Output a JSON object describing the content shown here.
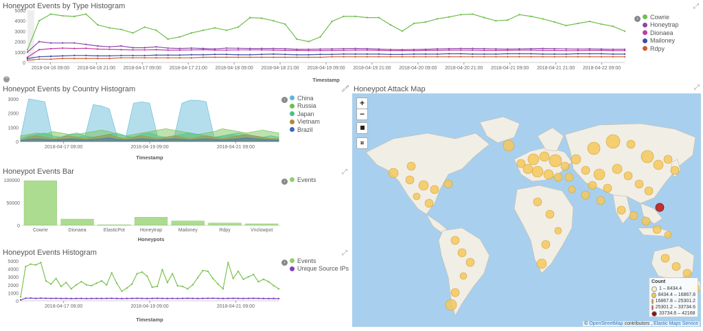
{
  "colors": {
    "cowrie": "#6dbf4b",
    "honeytrap": "#8e44ad",
    "dionaea": "#c03aa0",
    "mailoney": "#3a4ea8",
    "rdpy": "#d15a2e",
    "china": "#5ab6d6",
    "russia": "#6dbf4b",
    "japan": "#4bbf8a",
    "vietnam": "#b08a3a",
    "brazil": "#3a6ab8",
    "events": "#8fd06a",
    "unique": "#7b3fc4",
    "land": "#f1eee6",
    "bubble": "#f4c85a",
    "bubbleRed": "#c0302e"
  },
  "type_hist": {
    "title": "Honeypot Events by Type Histogram",
    "xlabel": "Timestamp",
    "ticks_y": [
      "5000",
      "4000",
      "3000",
      "2000",
      "1000",
      "0"
    ],
    "ticks_x": [
      "2018-04-16 09:00",
      "2018-04-16 21:00",
      "2018-04-17 09:00",
      "2018-04-17 21:00",
      "2018-04-18 09:00",
      "2018-04-18 21:00",
      "2018-04-19 09:00",
      "2018-04-19 21:00",
      "2018-04-20 09:00",
      "2018-04-20 21:00",
      "2018-04-21 09:00",
      "2018-04-21 21:00",
      "2018-04-22 09:00"
    ],
    "legend": [
      "Cowrie",
      "Honeytrap",
      "Dionaea",
      "Mailoney",
      "Rdpy"
    ]
  },
  "country_hist": {
    "title": "Honeypot Events by Country Histogram",
    "xlabel": "Timestamp",
    "ticks_y": [
      "3000",
      "2000",
      "1000",
      "0"
    ],
    "ticks_x": [
      "2018-04-17 09:00",
      "2018-04-19 09:00",
      "2018-04-21 09:00"
    ],
    "legend": [
      "China",
      "Russia",
      "Japan",
      "Vietnam",
      "Brazil"
    ]
  },
  "bar": {
    "title": "Honeypot Events Bar",
    "xlabel": "Honeypots",
    "ticks_y": [
      "100000",
      "50000",
      "0"
    ],
    "legend": [
      "Events"
    ]
  },
  "events_hist": {
    "title": "Honeypot Events Histogram",
    "xlabel": "Timestamp",
    "ticks_y": [
      "5000",
      "4000",
      "3000",
      "2000",
      "1000",
      "0"
    ],
    "ticks_x": [
      "2018-04-17 09:00",
      "2018-04-19 09:00",
      "2018-04-21 09:00"
    ],
    "legend": [
      "Events",
      "Unique Source IPs"
    ]
  },
  "map": {
    "title": "Honeypot Attack Map",
    "zoom_in": "+",
    "zoom_out": "−",
    "legend_title": "Count",
    "legend": [
      "1 – 8434.4",
      "8434.4 – 16867.8",
      "16867.8 – 25301.2",
      "25301.2 – 33734.6",
      "33734.6 – 42168"
    ],
    "legend_colors": [
      "#fbeec6",
      "#f4c85a",
      "#ef9a3c",
      "#e0452e",
      "#8a1016"
    ],
    "attr_symbol": "©",
    "attr_osm": "OpenStreetMap",
    "attr_mid": "contributors ,",
    "attr_ems": "Elastic Maps Service"
  },
  "chart_data": [
    {
      "type": "line",
      "title": "Honeypot Events by Type Histogram",
      "xlabel": "Timestamp",
      "x_range": [
        "2018-04-16 00:00",
        "2018-04-22 21:00"
      ],
      "ylim": [
        0,
        5000
      ],
      "series": [
        {
          "name": "Cowrie",
          "values": [
            300,
            3200,
            4300,
            4000,
            3900,
            4300,
            2600,
            2200,
            2000,
            1600,
            2300,
            1900,
            1000,
            1200,
            1600,
            1900,
            2200,
            1900,
            2300,
            3700,
            3600,
            3200,
            2700,
            1000,
            800,
            1200,
            3100,
            3900,
            3900,
            3700,
            3700,
            2600,
            1800,
            2800,
            3000,
            3500,
            3800,
            4200,
            4300,
            3700,
            3200,
            3300,
            4200,
            3900,
            3500,
            3000,
            2500,
            2800,
            3100,
            2700,
            2400,
            1800
          ],
          "note_omitted": false
        },
        {
          "name": "Honeytrap",
          "values": [
            200,
            800,
            700,
            700,
            700,
            600,
            500,
            450,
            500,
            400,
            400,
            450,
            380,
            360,
            380,
            360,
            340,
            380,
            370,
            360,
            360,
            360,
            350,
            320,
            320,
            330,
            340,
            350,
            360,
            350,
            330,
            310,
            300,
            310,
            320,
            340,
            350,
            360,
            360,
            350,
            340,
            330,
            340,
            350,
            360,
            350,
            340,
            330,
            340,
            330,
            320,
            320
          ]
        },
        {
          "name": "Dionaea",
          "values": [
            50,
            300,
            350,
            380,
            360,
            370,
            330,
            320,
            300,
            290,
            290,
            300,
            280,
            280,
            290,
            300,
            280,
            280,
            290,
            290,
            290,
            280,
            270,
            270,
            260,
            260,
            270,
            270,
            280,
            280,
            270,
            260,
            260,
            260,
            270,
            270,
            280,
            280,
            280,
            270,
            270,
            270,
            280,
            280,
            270,
            270,
            260,
            260,
            270,
            270,
            260,
            260
          ]
        },
        {
          "name": "Mailoney",
          "values": [
            30,
            60,
            70,
            80,
            90,
            90,
            80,
            80,
            90,
            90,
            90,
            100,
            100,
            100,
            110,
            110,
            120,
            120,
            110,
            110,
            120,
            130,
            120,
            110,
            110,
            120,
            120,
            130,
            130,
            130,
            130,
            120,
            120,
            130,
            130,
            130,
            140,
            140,
            130,
            130,
            130,
            140,
            140,
            140,
            130,
            130,
            130,
            140,
            140,
            140,
            130,
            130
          ]
        },
        {
          "name": "Rdpy",
          "values": [
            10,
            20,
            20,
            30,
            30,
            30,
            30,
            30,
            40,
            40,
            40,
            40,
            40,
            40,
            40,
            50,
            50,
            50,
            50,
            50,
            50,
            50,
            50,
            50,
            50,
            50,
            60,
            60,
            60,
            60,
            60,
            60,
            60,
            60,
            60,
            60,
            60,
            60,
            60,
            60,
            60,
            60,
            60,
            60,
            60,
            60,
            60,
            60,
            60,
            60,
            60,
            60
          ]
        }
      ]
    },
    {
      "type": "area",
      "title": "Honeypot Events by Country Histogram",
      "xlabel": "Timestamp",
      "ylim": [
        0,
        3000
      ],
      "series": [
        {
          "name": "China",
          "values": [
            300,
            3000,
            2900,
            2800,
            200,
            150,
            200,
            300,
            400,
            2600,
            2500,
            2300,
            300,
            200,
            2700,
            2800,
            2700,
            300,
            200,
            200,
            2700,
            2900,
            2900,
            2800,
            300,
            400,
            500,
            400,
            400,
            300,
            300,
            200,
            200
          ]
        },
        {
          "name": "Russia",
          "values": [
            400,
            500,
            600,
            500,
            700,
            600,
            500,
            500,
            600,
            700,
            800,
            700,
            500,
            400,
            500,
            600,
            700,
            800,
            900,
            800,
            700,
            600,
            500,
            600,
            700,
            900,
            800,
            700,
            600,
            700,
            800,
            700,
            600
          ]
        },
        {
          "name": "Japan",
          "values": [
            200,
            400,
            500,
            600,
            400,
            300,
            500,
            600,
            400,
            300,
            400,
            500,
            600,
            400,
            300,
            500,
            600,
            400,
            300,
            400,
            500,
            600,
            500,
            400,
            300,
            400,
            500,
            600,
            500,
            400,
            300,
            400,
            300
          ]
        },
        {
          "name": "Vietnam",
          "values": [
            100,
            300,
            400,
            300,
            200,
            300,
            400,
            300,
            200,
            300,
            400,
            500,
            300,
            200,
            300,
            400,
            300,
            200,
            300,
            400,
            300,
            200,
            300,
            400,
            300,
            200,
            300,
            400,
            500,
            400,
            300,
            200,
            200
          ]
        },
        {
          "name": "Brazil",
          "values": [
            50,
            150,
            200,
            150,
            100,
            150,
            200,
            150,
            100,
            150,
            200,
            250,
            150,
            100,
            150,
            200,
            150,
            100,
            150,
            200,
            150,
            100,
            150,
            200,
            150,
            100,
            150,
            200,
            250,
            200,
            150,
            100,
            100
          ]
        }
      ]
    },
    {
      "type": "bar",
      "title": "Honeypot Events Bar",
      "xlabel": "Honeypots",
      "categories": [
        "Cowrie",
        "Dionaea",
        "ElasticPot",
        "Honeytrap",
        "Mailoney",
        "Rdpy",
        "Vnclowpot"
      ],
      "series": [
        {
          "name": "Events",
          "values": [
            108000,
            15000,
            1200,
            19500,
            10500,
            5500,
            3500
          ]
        }
      ],
      "ylim": [
        0,
        110000
      ]
    },
    {
      "type": "line",
      "title": "Honeypot Events Histogram",
      "xlabel": "Timestamp",
      "ylim": [
        0,
        5000
      ],
      "series": [
        {
          "name": "Events",
          "values": [
            500,
            4300,
            4600,
            4500,
            4800,
            2500,
            2100,
            2800,
            1800,
            2300,
            1500,
            2000,
            2400,
            2000,
            1900,
            2200,
            2500,
            2000,
            3500,
            2200,
            1200,
            1600,
            2100,
            3400,
            3600,
            3100,
            1700,
            1800,
            3900,
            2300,
            3400,
            1900,
            1800,
            1500,
            2000,
            2900,
            3800,
            3700,
            2800,
            2100,
            1500,
            4800,
            2800,
            3700,
            2700,
            3000,
            3300,
            2400,
            2700,
            2400,
            1900,
            1500
          ]
        },
        {
          "name": "Unique Source IPs",
          "values": [
            100,
            320,
            340,
            300,
            330,
            310,
            300,
            310,
            290,
            300,
            280,
            290,
            300,
            280,
            290,
            300,
            290,
            300,
            310,
            290,
            280,
            290,
            300,
            310,
            300,
            290,
            300,
            310,
            300,
            290,
            300,
            290,
            300,
            310,
            300,
            290,
            300,
            310,
            320,
            300,
            290,
            300,
            310,
            300,
            290,
            300,
            310,
            300,
            290,
            280,
            290,
            270
          ]
        }
      ]
    }
  ]
}
